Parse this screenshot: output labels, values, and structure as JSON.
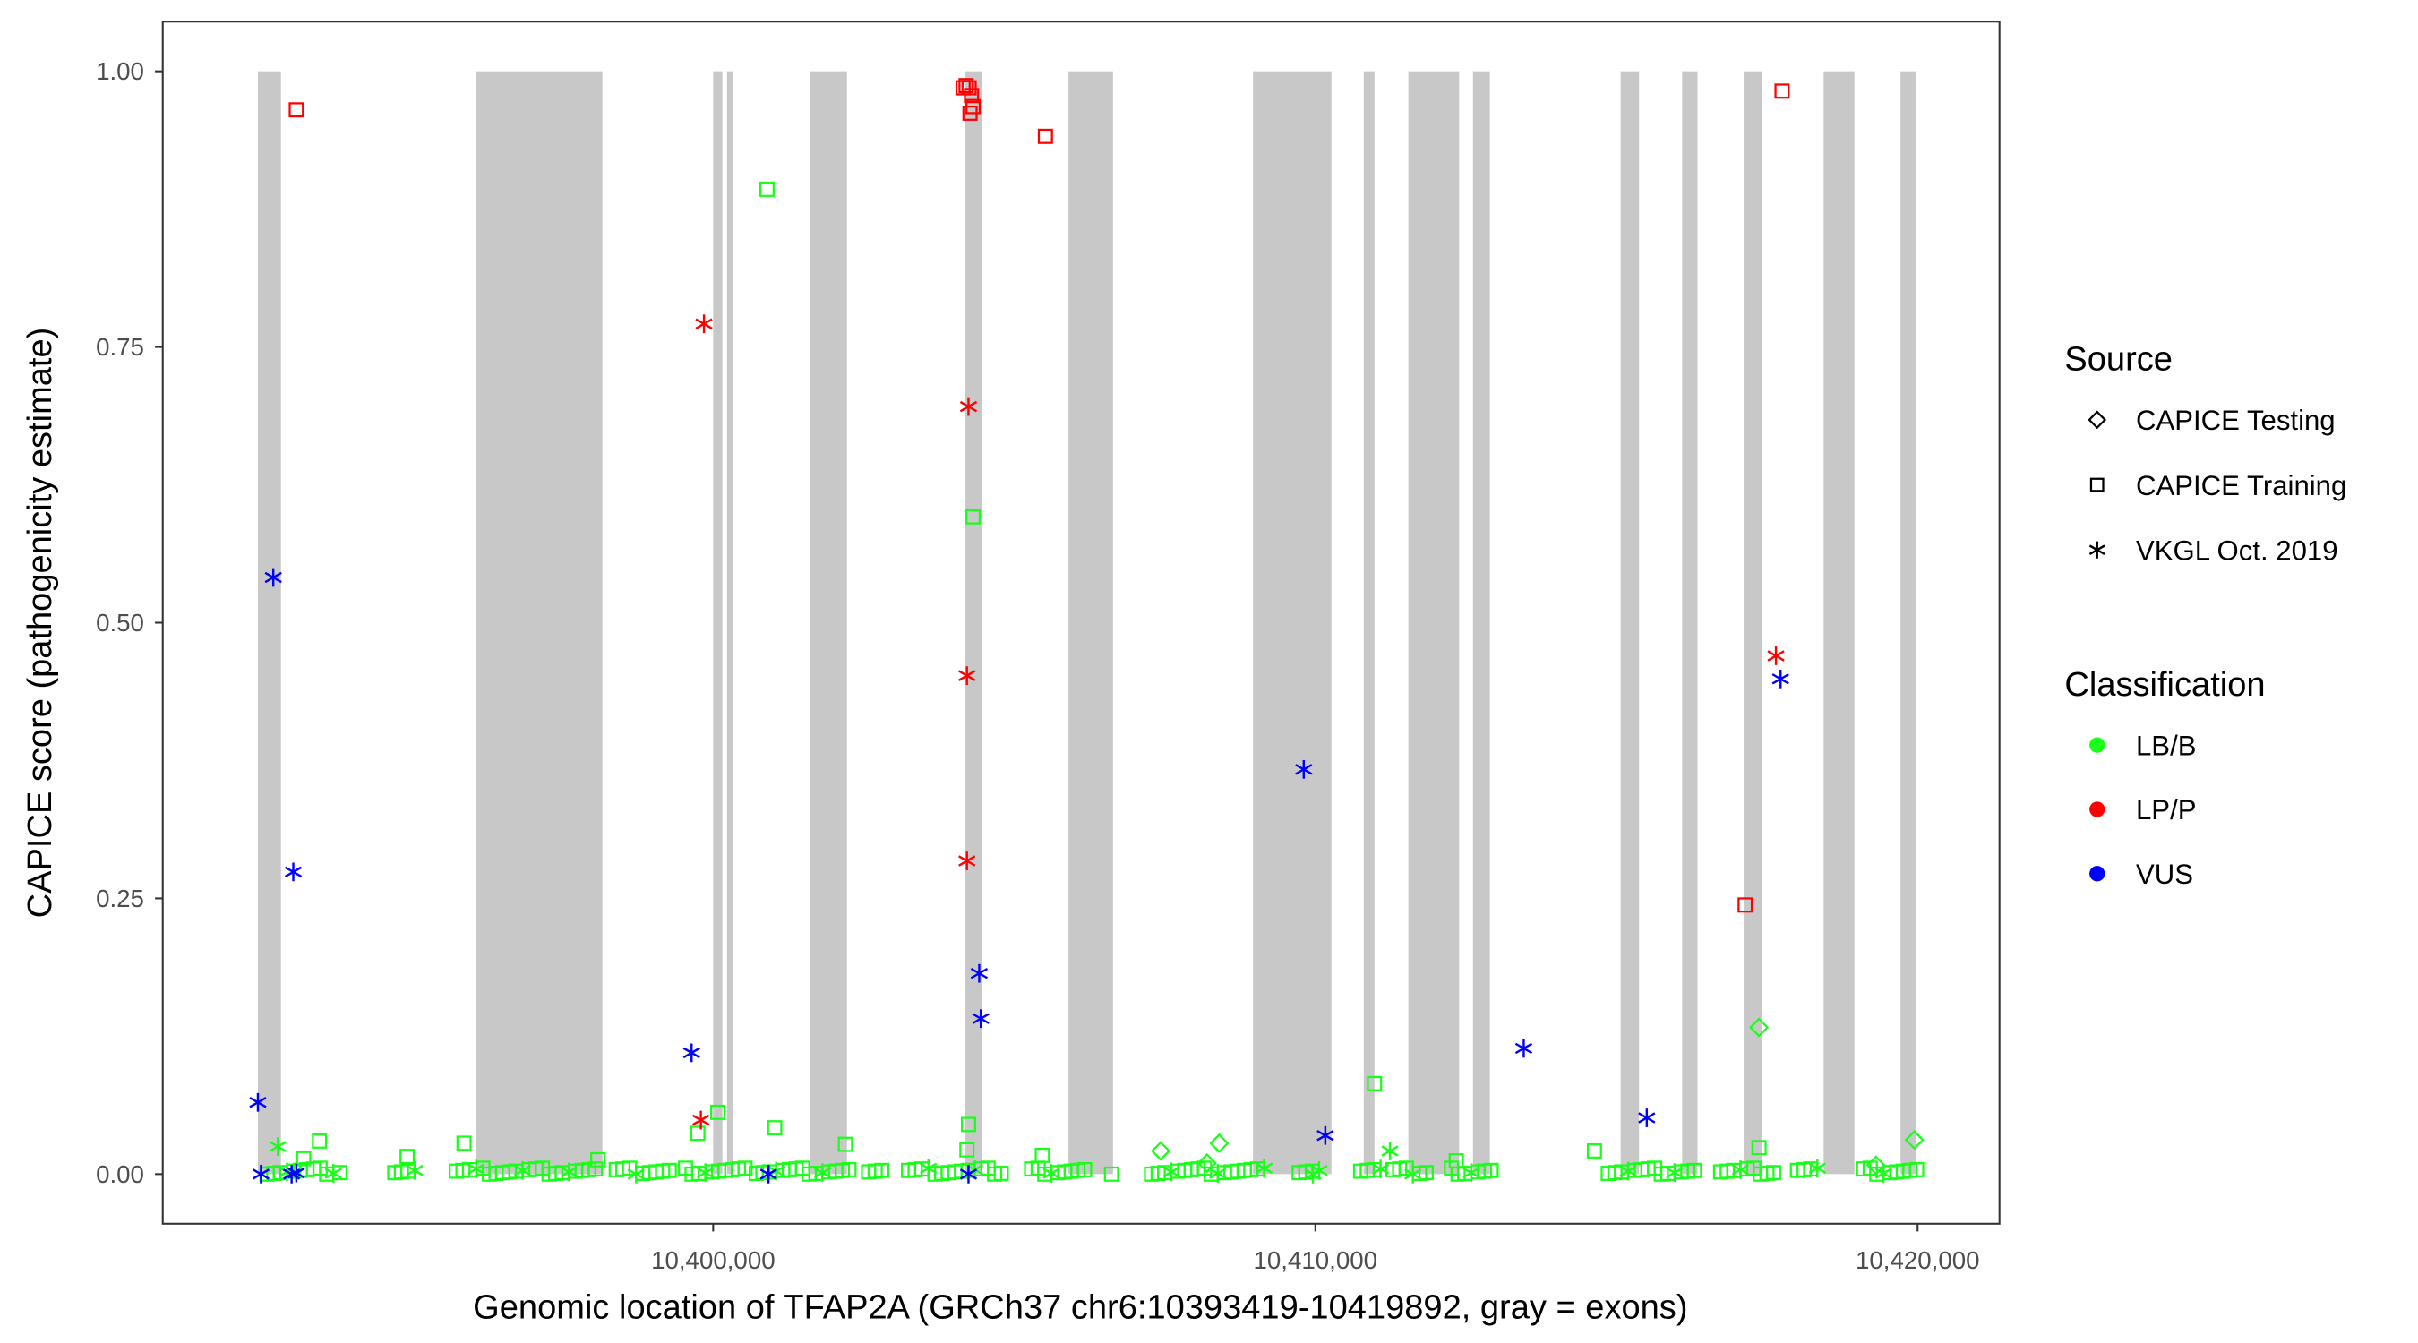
{
  "chart_data": {
    "type": "scatter",
    "xlabel": "Genomic location of TFAP2A (GRCh37 chr6:10393419-10419892, gray = exons)",
    "ylabel": "CAPICE score (pathogenicity estimate)",
    "xlim": [
      10390860,
      10421360
    ],
    "ylim": [
      -0.045,
      1.045
    ],
    "x_ticks": [
      10400000,
      10410000,
      10420000
    ],
    "x_tick_labels": [
      "10,400,000",
      "10,410,000",
      "10,420,000"
    ],
    "y_ticks": [
      0,
      0.25,
      0.5,
      0.75,
      1.0
    ],
    "y_tick_labels": [
      "0.00",
      "0.25",
      "0.50",
      "0.75",
      "1.00"
    ],
    "grid": false,
    "exon_color": "#c8c8c8",
    "exons": [
      [
        10392440,
        10392823
      ],
      [
        10396067,
        10398161
      ],
      [
        10400000,
        10400153
      ],
      [
        10400230,
        10400332
      ],
      [
        10401609,
        10402222
      ],
      [
        10404189,
        10404470
      ],
      [
        10405900,
        10406640
      ],
      [
        10408965,
        10410267
      ],
      [
        10410803,
        10410982
      ],
      [
        10411544,
        10412387
      ],
      [
        10412617,
        10412898
      ],
      [
        10415069,
        10415375
      ],
      [
        10416090,
        10416346
      ],
      [
        10417112,
        10417418
      ],
      [
        10418440,
        10418951
      ],
      [
        10419717,
        10419972
      ]
    ],
    "legend": {
      "placement": "right",
      "source_title": "Source",
      "source_items": [
        {
          "label": "CAPICE Testing",
          "shape": "diamond"
        },
        {
          "label": "CAPICE Training",
          "shape": "square"
        },
        {
          "label": "VKGL Oct. 2019",
          "shape": "asterisk"
        }
      ],
      "class_title": "Classification",
      "class_items": [
        {
          "label": "LB/B",
          "color": "#1aff1a"
        },
        {
          "label": "LP/P",
          "color": "#ff0000"
        },
        {
          "label": "VUS",
          "color": "#0000ff"
        }
      ]
    },
    "points": [
      {
        "x": 10393078,
        "y": 0.965,
        "source": "square",
        "class": "LP/P"
      },
      {
        "x": 10404150,
        "y": 0.985,
        "source": "square",
        "class": "LP/P"
      },
      {
        "x": 10404200,
        "y": 0.987,
        "source": "square",
        "class": "LP/P"
      },
      {
        "x": 10404250,
        "y": 0.985,
        "source": "square",
        "class": "LP/P"
      },
      {
        "x": 10404290,
        "y": 0.978,
        "source": "square",
        "class": "LP/P"
      },
      {
        "x": 10404316,
        "y": 0.968,
        "source": "square",
        "class": "LP/P"
      },
      {
        "x": 10404265,
        "y": 0.962,
        "source": "square",
        "class": "LP/P"
      },
      {
        "x": 10405517,
        "y": 0.941,
        "source": "square",
        "class": "LP/P"
      },
      {
        "x": 10417750,
        "y": 0.982,
        "source": "square",
        "class": "LP/P"
      },
      {
        "x": 10417137,
        "y": 0.244,
        "source": "square",
        "class": "LP/P"
      },
      {
        "x": 10399847,
        "y": 0.771,
        "source": "asterisk",
        "class": "LP/P"
      },
      {
        "x": 10404240,
        "y": 0.696,
        "source": "asterisk",
        "class": "LP/P"
      },
      {
        "x": 10404214,
        "y": 0.452,
        "source": "asterisk",
        "class": "LP/P"
      },
      {
        "x": 10404214,
        "y": 0.284,
        "source": "asterisk",
        "class": "LP/P"
      },
      {
        "x": 10399796,
        "y": 0.049,
        "source": "asterisk",
        "class": "LP/P"
      },
      {
        "x": 10417648,
        "y": 0.47,
        "source": "asterisk",
        "class": "LP/P"
      },
      {
        "x": 10392696,
        "y": 0.541,
        "source": "asterisk",
        "class": "VUS"
      },
      {
        "x": 10393028,
        "y": 0.274,
        "source": "asterisk",
        "class": "VUS"
      },
      {
        "x": 10392440,
        "y": 0.065,
        "source": "asterisk",
        "class": "VUS"
      },
      {
        "x": 10399642,
        "y": 0.11,
        "source": "asterisk",
        "class": "VUS"
      },
      {
        "x": 10404418,
        "y": 0.182,
        "source": "asterisk",
        "class": "VUS"
      },
      {
        "x": 10404444,
        "y": 0.141,
        "source": "asterisk",
        "class": "VUS"
      },
      {
        "x": 10409807,
        "y": 0.367,
        "source": "asterisk",
        "class": "VUS"
      },
      {
        "x": 10410165,
        "y": 0.035,
        "source": "asterisk",
        "class": "VUS"
      },
      {
        "x": 10413460,
        "y": 0.114,
        "source": "asterisk",
        "class": "VUS"
      },
      {
        "x": 10415503,
        "y": 0.051,
        "source": "asterisk",
        "class": "VUS"
      },
      {
        "x": 10417725,
        "y": 0.449,
        "source": "asterisk",
        "class": "VUS"
      },
      {
        "x": 10392491,
        "y": 0.0,
        "source": "asterisk",
        "class": "VUS"
      },
      {
        "x": 10393000,
        "y": 0.0,
        "source": "asterisk",
        "class": "VUS"
      },
      {
        "x": 10393078,
        "y": 0.001,
        "source": "asterisk",
        "class": "VUS"
      },
      {
        "x": 10400919,
        "y": 0.0,
        "source": "asterisk",
        "class": "VUS"
      },
      {
        "x": 10404240,
        "y": 0.0,
        "source": "asterisk",
        "class": "VUS"
      },
      {
        "x": 10400894,
        "y": 0.893,
        "source": "square",
        "class": "LB/B"
      },
      {
        "x": 10404316,
        "y": 0.596,
        "source": "square",
        "class": "LB/B"
      },
      {
        "x": 10410982,
        "y": 0.082,
        "source": "square",
        "class": "LB/B"
      },
      {
        "x": 10417367,
        "y": 0.133,
        "source": "diamond",
        "class": "LB/B"
      },
      {
        "x": 10400077,
        "y": 0.056,
        "source": "square",
        "class": "LB/B"
      },
      {
        "x": 10401022,
        "y": 0.042,
        "source": "square",
        "class": "LB/B"
      },
      {
        "x": 10399745,
        "y": 0.037,
        "source": "square",
        "class": "LB/B"
      },
      {
        "x": 10393462,
        "y": 0.03,
        "source": "square",
        "class": "LB/B"
      },
      {
        "x": 10419947,
        "y": 0.031,
        "source": "diamond",
        "class": "LB/B"
      },
      {
        "x": 10408403,
        "y": 0.028,
        "source": "diamond",
        "class": "LB/B"
      },
      {
        "x": 10402196,
        "y": 0.027,
        "source": "square",
        "class": "LB/B"
      },
      {
        "x": 10395863,
        "y": 0.028,
        "source": "square",
        "class": "LB/B"
      },
      {
        "x": 10404240,
        "y": 0.045,
        "source": "square",
        "class": "LB/B"
      },
      {
        "x": 10404214,
        "y": 0.022,
        "source": "square",
        "class": "LB/B"
      },
      {
        "x": 10407432,
        "y": 0.021,
        "source": "diamond",
        "class": "LB/B"
      },
      {
        "x": 10414634,
        "y": 0.021,
        "source": "square",
        "class": "LB/B"
      },
      {
        "x": 10411238,
        "y": 0.021,
        "source": "asterisk",
        "class": "LB/B"
      },
      {
        "x": 10392772,
        "y": 0.025,
        "source": "asterisk",
        "class": "LB/B"
      },
      {
        "x": 10417367,
        "y": 0.024,
        "source": "square",
        "class": "LB/B"
      },
      {
        "x": 10394918,
        "y": 0.016,
        "source": "square",
        "class": "LB/B"
      },
      {
        "x": 10405466,
        "y": 0.017,
        "source": "square",
        "class": "LB/B"
      },
      {
        "x": 10419308,
        "y": 0.008,
        "source": "diamond",
        "class": "LB/B"
      },
      {
        "x": 10406615,
        "y": 0.0,
        "source": "square",
        "class": "LB/B"
      },
      {
        "x": 10398084,
        "y": 0.013,
        "source": "square",
        "class": "LB/B"
      },
      {
        "x": 10412340,
        "y": 0.012,
        "source": "square",
        "class": "LB/B"
      },
      {
        "x": 10408200,
        "y": 0.01,
        "source": "diamond",
        "class": "LB/B"
      },
      {
        "x": 10409960,
        "y": 0.0,
        "source": "asterisk",
        "class": "LB/B"
      },
      {
        "x": 10393200,
        "y": 0.014,
        "source": "square",
        "class": "LB/B"
      }
    ],
    "lbb_near_zero_runs": [
      [
        10392593,
        10393870
      ],
      [
        10394713,
        10395147
      ],
      [
        10395735,
        10398084
      ],
      [
        10398391,
        10399361
      ],
      [
        10399540,
        10400639
      ],
      [
        10400715,
        10402299
      ],
      [
        10402580,
        10402886
      ],
      [
        10403244,
        10404853
      ],
      [
        10405287,
        10406257
      ],
      [
        10407279,
        10409194
      ],
      [
        10409731,
        10410088
      ],
      [
        10410752,
        10411110
      ],
      [
        10411289,
        10411876
      ],
      [
        10412259,
        10412949
      ],
      [
        10414864,
        10416397
      ],
      [
        10416729,
        10417623
      ],
      [
        10418006,
        10418389
      ],
      [
        10419104,
        10420049
      ]
    ]
  }
}
